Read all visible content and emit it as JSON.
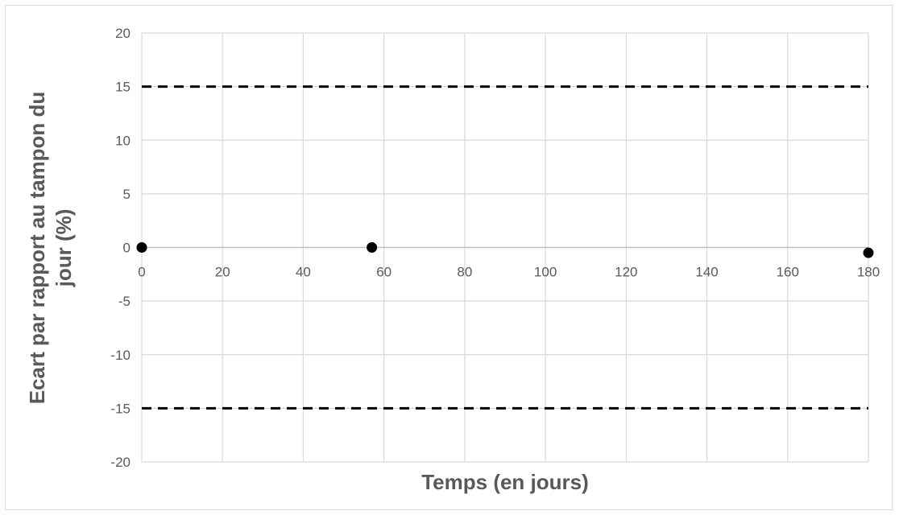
{
  "chart_data": {
    "type": "scatter",
    "xlabel": "Temps (en jours)",
    "ylabel_lines": [
      "Ecart par rapport au tampon du",
      "jour (%)"
    ],
    "xlim": [
      0,
      180
    ],
    "ylim": [
      -20,
      20
    ],
    "x_ticks": [
      0,
      20,
      40,
      60,
      80,
      100,
      120,
      140,
      160,
      180
    ],
    "y_ticks": [
      20,
      15,
      10,
      5,
      0,
      -5,
      -10,
      -15,
      -20
    ],
    "grid": true,
    "legend": "none",
    "series": [
      {
        "points": [
          {
            "x": 0,
            "y": 0
          },
          {
            "x": 57,
            "y": 0
          },
          {
            "x": 180,
            "y": -0.5
          }
        ],
        "color": "#000000"
      }
    ],
    "reference_lines": [
      {
        "y": 15,
        "style": "dashed",
        "color": "#000000"
      },
      {
        "y": -15,
        "style": "dashed",
        "color": "#000000"
      }
    ],
    "colors": {
      "grid": "#d9d9d9",
      "axis": "#bfbfbf",
      "text": "#595959"
    }
  }
}
